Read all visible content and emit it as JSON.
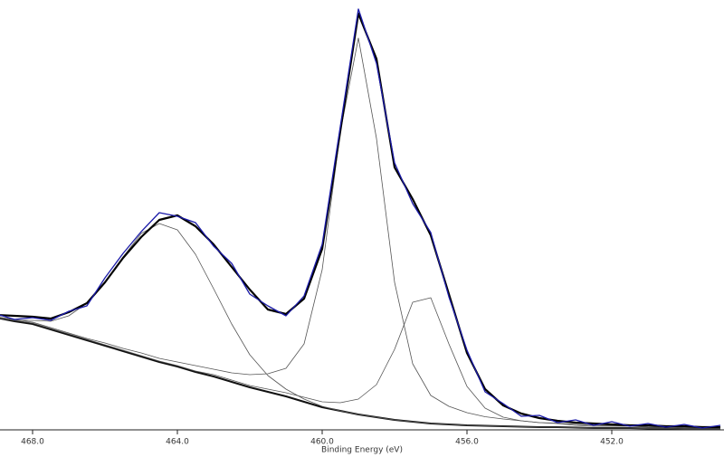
{
  "chart_data": {
    "type": "line",
    "x_label": "Binding Energy (eV)",
    "x": [
      469,
      468.5,
      468,
      467.5,
      467,
      466.5,
      466,
      465.5,
      465,
      464.5,
      464,
      463.5,
      463,
      462.5,
      462,
      461.5,
      461,
      460.5,
      460,
      459.5,
      459,
      458.5,
      458,
      457.5,
      457,
      456.5,
      456,
      455.5,
      455,
      454.5,
      454,
      453.5,
      453,
      452.5,
      452,
      451.5,
      451,
      450.5,
      450,
      449.5,
      449
    ],
    "xlim": [
      468.9,
      448.9
    ],
    "xticks": [
      {
        "value": 468,
        "label": "468.0"
      },
      {
        "value": 464,
        "label": "464.0"
      },
      {
        "value": 460,
        "label": "460.0"
      },
      {
        "value": 456,
        "label": "456.0"
      },
      {
        "value": 452,
        "label": "452.0"
      }
    ],
    "ylim": [
      0,
      475
    ],
    "series": [
      {
        "color": "#111111",
        "line_width": 2,
        "values": [
          124,
          120,
          117,
          111,
          105,
          99,
          93,
          87,
          81,
          75,
          70,
          64,
          59,
          53,
          47,
          42,
          37,
          31,
          25,
          21,
          17,
          14,
          11,
          9,
          7,
          6,
          5,
          4.5,
          4,
          3.5,
          3,
          3,
          2.5,
          2,
          2,
          2,
          1.5,
          1.5,
          1,
          1,
          1
        ]
      },
      {
        "color": "#555555",
        "line_width": 0.8,
        "values": [
          124,
          121,
          121,
          120,
          126,
          140,
          163,
          191,
          217,
          228,
          221,
          194,
          156,
          117,
          83,
          60,
          45,
          34,
          26,
          21,
          17,
          14,
          11,
          9,
          7,
          6,
          5,
          4.5,
          4,
          3.5,
          3,
          3,
          2.5,
          2,
          2,
          2,
          1.5,
          1.5,
          1,
          1,
          1
        ]
      },
      {
        "color": "#555555",
        "line_width": 0.8,
        "values": [
          125,
          122,
          119,
          113,
          107,
          101,
          96,
          90,
          85,
          79,
          75,
          71,
          67,
          63,
          61,
          62,
          68,
          95,
          177,
          329,
          433,
          322,
          163,
          73,
          38,
          26,
          19,
          14.5,
          12,
          10,
          8,
          7.3,
          6.1,
          5.1,
          4.6,
          4.3,
          3.5,
          3.3,
          2.6,
          2.5,
          2.3
        ]
      },
      {
        "color": "#555555",
        "line_width": 0.8,
        "values": [
          125,
          121,
          118,
          112,
          106,
          100,
          94,
          88,
          82,
          76,
          71,
          65,
          61,
          55,
          49,
          45,
          41,
          36,
          31,
          30,
          34,
          50,
          89,
          141,
          146,
          95,
          48,
          24,
          14,
          10,
          8,
          7,
          5,
          4,
          4,
          4,
          3,
          3,
          2,
          2,
          2
        ]
      },
      {
        "color": "#000000",
        "line_width": 2.2,
        "values": [
          127,
          126,
          125,
          123,
          130,
          140,
          163,
          190,
          213,
          232,
          237,
          225,
          205,
          180,
          155,
          133,
          128,
          145,
          200,
          330,
          460,
          410,
          290,
          255,
          215,
          150,
          85,
          45,
          27,
          18,
          13,
          10,
          8,
          7,
          6,
          5,
          5,
          4,
          4,
          3,
          3
        ]
      },
      {
        "color": "#1a1aa8",
        "line_width": 1.3,
        "values": [
          128,
          122,
          124,
          121,
          131,
          137,
          168,
          195,
          219,
          240,
          236,
          229,
          203,
          184,
          150,
          137,
          126,
          148,
          205,
          335,
          465,
          405,
          295,
          250,
          218,
          147,
          88,
          42,
          29,
          15,
          16,
          8,
          11,
          5,
          9,
          4,
          7,
          3,
          6,
          2,
          5
        ]
      }
    ]
  }
}
